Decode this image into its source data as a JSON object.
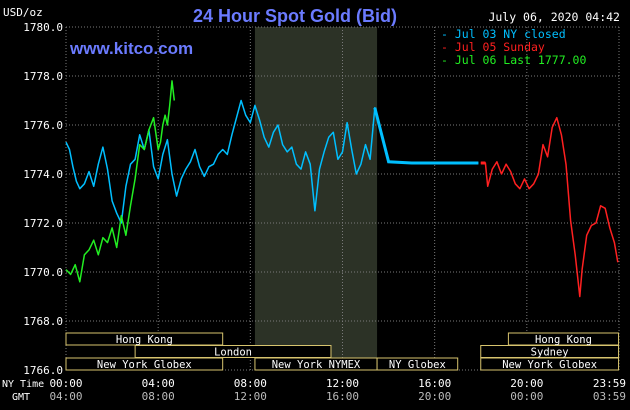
{
  "header": {
    "title": "24 Hour Spot Gold (Bid)",
    "datetime": "July 06, 2020 04:42",
    "y_unit": "USD/oz",
    "website": "www.kitco.com"
  },
  "legend": [
    {
      "label": "Jul 03 NY closed",
      "color": "#00bfff"
    },
    {
      "label": "Jul 05 Sunday",
      "color": "#ff2020"
    },
    {
      "label": "Jul 06 Last 1777.00",
      "color": "#22ee22"
    }
  ],
  "axis_titles": {
    "ny_time": "NY Time",
    "gmt": "GMT"
  },
  "x_ticks_ny": [
    "00:00",
    "04:00",
    "08:00",
    "12:00",
    "16:00",
    "20:00",
    "23:59"
  ],
  "x_ticks_gmt": [
    "04:00",
    "08:00",
    "12:00",
    "16:00",
    "20:00",
    "00:00",
    "03:59"
  ],
  "y_ticks": [
    "1780.0",
    "1778.0",
    "1776.0",
    "1774.0",
    "1772.0",
    "1770.0",
    "1768.0",
    "1766.0"
  ],
  "market_sessions": [
    {
      "label": "Hong Kong",
      "row": 0,
      "start": 0.0,
      "end": 6.8
    },
    {
      "label": "Hong Kong",
      "row": 0,
      "start": 19.2,
      "end": 23.98
    },
    {
      "label": "London",
      "row": 1,
      "start": 3.0,
      "end": 11.5
    },
    {
      "label": "Sydney",
      "row": 1,
      "start": 18.0,
      "end": 23.98
    },
    {
      "label": "New York Globex",
      "row": 2,
      "start": 0.0,
      "end": 6.8
    },
    {
      "label": "New York NYMEX",
      "row": 2,
      "start": 8.2,
      "end": 13.5
    },
    {
      "label": "NY Globex",
      "row": 2,
      "start": 13.5,
      "end": 17.0
    },
    {
      "label": "New York Globex",
      "row": 2,
      "start": 18.0,
      "end": 23.98
    }
  ],
  "colors": {
    "background": "#000000",
    "grid": "#7a7a7a",
    "text": "#ffffff",
    "title": "#6b7bff",
    "nymex_band": "#2c3226",
    "session_border": "#d7c46e"
  },
  "chart_data": {
    "type": "line",
    "title": "24 Hour Spot Gold (Bid)",
    "ylabel": "USD/oz",
    "x_unit": "NY time hour",
    "xlim": [
      0,
      24
    ],
    "ylim": [
      1766,
      1780
    ],
    "grid": true,
    "legend_position": "top-right",
    "series": [
      {
        "name": "Jul 03 NY closed",
        "color": "#00bfff",
        "x": [
          0.0,
          0.15,
          0.3,
          0.45,
          0.6,
          0.8,
          1.0,
          1.2,
          1.4,
          1.6,
          1.8,
          2.0,
          2.2,
          2.4,
          2.6,
          2.8,
          3.0,
          3.2,
          3.4,
          3.6,
          3.8,
          4.0,
          4.2,
          4.4,
          4.6,
          4.8,
          5.0,
          5.2,
          5.4,
          5.6,
          5.8,
          6.0,
          6.2,
          6.4,
          6.6,
          6.8,
          7.0,
          7.2,
          7.4,
          7.6,
          7.8,
          8.0,
          8.2,
          8.4,
          8.6,
          8.8,
          9.0,
          9.2,
          9.4,
          9.6,
          9.8,
          10.0,
          10.2,
          10.4,
          10.6,
          10.8,
          11.0,
          11.2,
          11.4,
          11.6,
          11.8,
          12.0,
          12.2,
          12.4,
          12.6,
          12.8,
          13.0,
          13.2,
          13.4,
          14.0,
          15.0,
          16.0,
          17.0,
          17.9
        ],
        "y": [
          1775.3,
          1775.0,
          1774.3,
          1773.7,
          1773.4,
          1773.6,
          1774.1,
          1773.5,
          1774.4,
          1775.1,
          1774.2,
          1772.9,
          1772.4,
          1772.0,
          1773.5,
          1774.4,
          1774.6,
          1775.6,
          1775.0,
          1775.8,
          1774.3,
          1773.8,
          1774.8,
          1775.4,
          1774.0,
          1773.1,
          1773.8,
          1774.2,
          1774.5,
          1775.0,
          1774.3,
          1773.9,
          1774.3,
          1774.4,
          1774.8,
          1775.0,
          1774.8,
          1775.6,
          1776.3,
          1777.0,
          1776.4,
          1776.1,
          1776.8,
          1776.2,
          1775.5,
          1775.1,
          1775.7,
          1776.0,
          1775.2,
          1774.9,
          1775.1,
          1774.4,
          1774.2,
          1774.9,
          1774.4,
          1772.5,
          1774.2,
          1774.9,
          1775.5,
          1775.7,
          1774.6,
          1774.9,
          1776.1,
          1775.0,
          1774.0,
          1774.4,
          1775.2,
          1774.6,
          1776.7,
          1774.5,
          1774.45,
          1774.45,
          1774.45,
          1774.45
        ]
      },
      {
        "name": "Jul 05 Sunday",
        "color": "#ff2020",
        "x": [
          18.0,
          18.2,
          18.3,
          18.5,
          18.7,
          18.9,
          19.1,
          19.3,
          19.5,
          19.7,
          19.9,
          20.1,
          20.3,
          20.5,
          20.7,
          20.9,
          21.1,
          21.3,
          21.5,
          21.7,
          21.9,
          22.1,
          22.3,
          22.4,
          22.6,
          22.8,
          23.0,
          23.2,
          23.4,
          23.6,
          23.8,
          23.95
        ],
        "y": [
          1774.45,
          1774.45,
          1773.5,
          1774.2,
          1774.5,
          1774.0,
          1774.4,
          1774.1,
          1773.6,
          1773.4,
          1773.8,
          1773.4,
          1773.6,
          1774.0,
          1775.2,
          1774.7,
          1775.9,
          1776.3,
          1775.6,
          1774.4,
          1772.1,
          1770.7,
          1769.0,
          1770.1,
          1771.5,
          1771.9,
          1772.0,
          1772.7,
          1772.6,
          1771.8,
          1771.2,
          1770.4
        ]
      },
      {
        "name": "Jul 06 Last 1777.00",
        "color": "#22ee22",
        "x": [
          0.0,
          0.2,
          0.4,
          0.6,
          0.8,
          1.0,
          1.2,
          1.4,
          1.6,
          1.8,
          2.0,
          2.2,
          2.4,
          2.6,
          2.8,
          3.0,
          3.2,
          3.4,
          3.6,
          3.8,
          4.0,
          4.1,
          4.2,
          4.3,
          4.4,
          4.5,
          4.6,
          4.7
        ],
        "y": [
          1770.1,
          1769.9,
          1770.3,
          1769.6,
          1770.7,
          1770.9,
          1771.3,
          1770.7,
          1771.4,
          1771.2,
          1771.8,
          1771.0,
          1772.3,
          1771.5,
          1772.7,
          1773.8,
          1775.2,
          1775.0,
          1775.8,
          1776.3,
          1775.0,
          1775.3,
          1776.0,
          1776.4,
          1776.0,
          1776.8,
          1777.8,
          1777.0
        ]
      }
    ]
  }
}
